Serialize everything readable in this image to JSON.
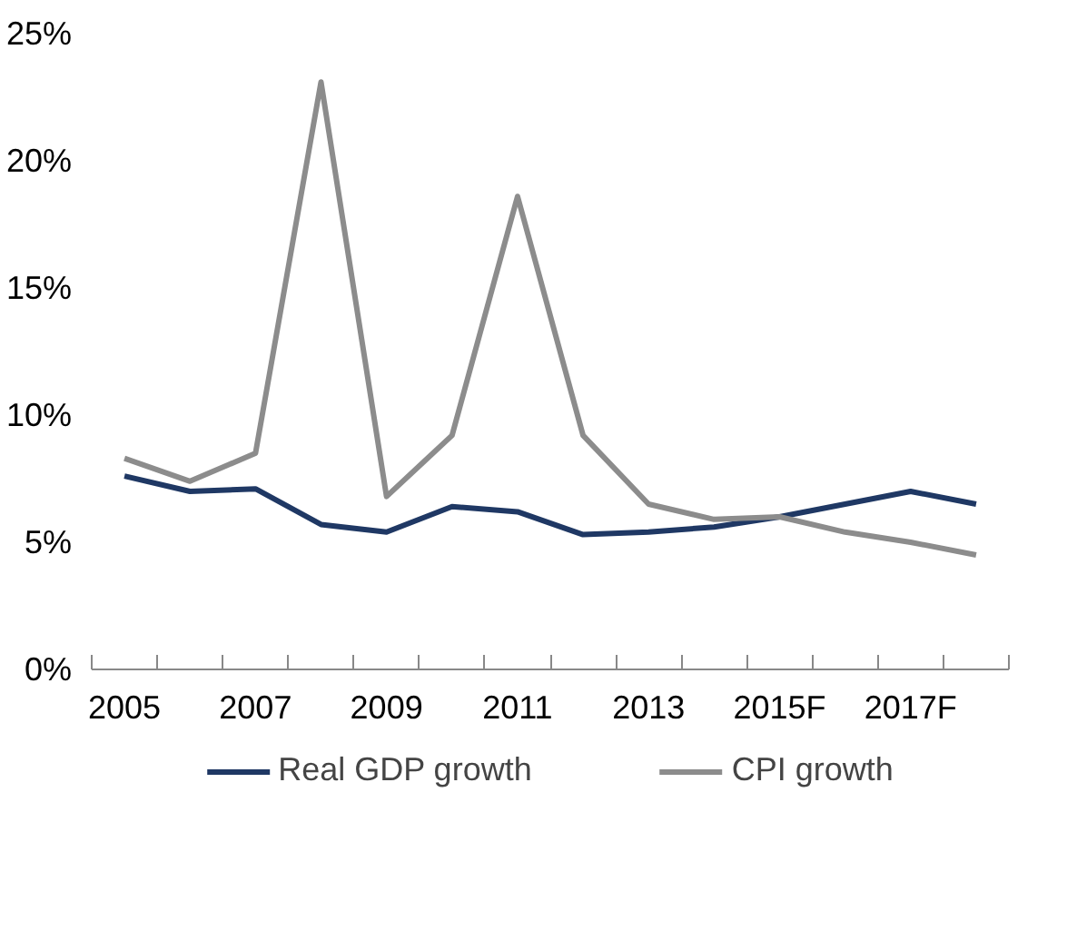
{
  "chart_data": {
    "type": "line",
    "categories": [
      "2005",
      null,
      "2007",
      null,
      "2009",
      null,
      "2011",
      null,
      "2013",
      null,
      "2015F",
      null,
      "2017F",
      null
    ],
    "series": [
      {
        "name": "Real GDP growth",
        "color": "#1f3864",
        "values": [
          7.6,
          7.0,
          7.1,
          5.7,
          5.4,
          6.4,
          6.2,
          5.3,
          5.4,
          5.6,
          6.0,
          6.5,
          7.0,
          6.5
        ]
      },
      {
        "name": "CPI growth",
        "color": "#8c8c8c",
        "values": [
          8.3,
          7.4,
          8.5,
          23.1,
          6.8,
          9.2,
          18.6,
          9.2,
          6.5,
          5.9,
          6.0,
          5.4,
          5.0,
          4.5
        ]
      }
    ],
    "ylim": [
      0,
      25
    ],
    "yticks": [
      {
        "value": 0,
        "label": "0%"
      },
      {
        "value": 5,
        "label": "5%"
      },
      {
        "value": 10,
        "label": "10%"
      },
      {
        "value": 15,
        "label": "15%"
      },
      {
        "value": 20,
        "label": "20%"
      },
      {
        "value": 25,
        "label": "25%"
      }
    ],
    "grid": false,
    "legend": "bottom",
    "marker": "none",
    "line_style": "solid"
  }
}
